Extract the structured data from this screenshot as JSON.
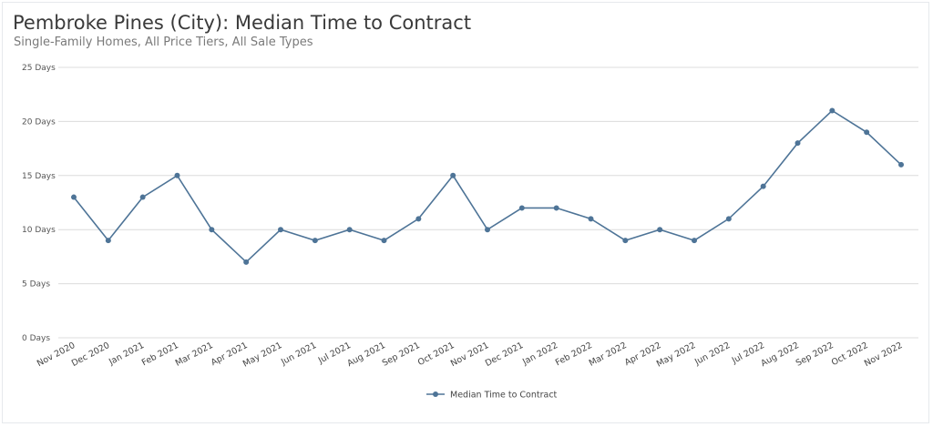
{
  "chart_data": {
    "type": "line",
    "title": "Pembroke Pines (City): Median Time to Contract",
    "subtitle": "Single-Family Homes, All Price Tiers, All Sale Types",
    "xlabel": "",
    "ylabel": "",
    "ylim": [
      0,
      25
    ],
    "yticks": [
      "0 Days",
      "5 Days",
      "10 Days",
      "15 Days",
      "20 Days",
      "25 Days"
    ],
    "y_tick_values": [
      0,
      5,
      10,
      15,
      20,
      25
    ],
    "grid": true,
    "legend_position": "bottom-center",
    "categories": [
      "Nov 2020",
      "Dec 2020",
      "Jan 2021",
      "Feb 2021",
      "Mar 2021",
      "Apr 2021",
      "May 2021",
      "Jun 2021",
      "Jul 2021",
      "Aug 2021",
      "Sep 2021",
      "Oct 2021",
      "Nov 2021",
      "Dec 2021",
      "Jan 2022",
      "Feb 2022",
      "Mar 2022",
      "Apr 2022",
      "May 2022",
      "Jun 2022",
      "Jul 2022",
      "Aug 2022",
      "Sep 2022",
      "Oct 2022",
      "Nov 2022"
    ],
    "series": [
      {
        "name": "Median Time to Contract",
        "color": "#4e7497",
        "values": [
          13,
          9,
          13,
          15,
          10,
          7,
          10,
          9,
          10,
          9,
          11,
          15,
          10,
          12,
          12,
          11,
          9,
          10,
          9,
          11,
          14,
          18,
          21,
          19,
          16
        ]
      }
    ]
  }
}
